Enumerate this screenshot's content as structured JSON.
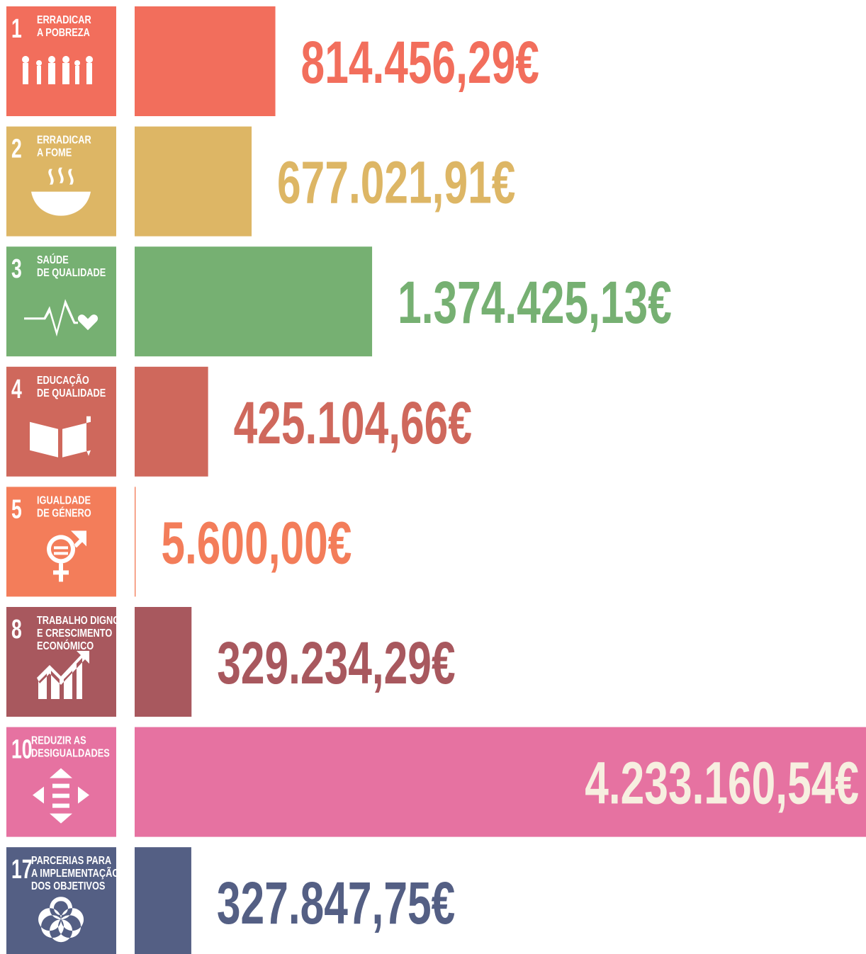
{
  "chart_data": {
    "type": "bar",
    "orientation": "horizontal",
    "goal_numbers": [
      1,
      2,
      3,
      4,
      5,
      8,
      10,
      17
    ],
    "categories": [
      [
        "ERRADICAR",
        "A POBREZA"
      ],
      [
        "ERRADICAR",
        "A FOME"
      ],
      [
        "SAÚDE",
        "DE QUALIDADE"
      ],
      [
        "EDUCAÇÃO",
        "DE QUALIDADE"
      ],
      [
        "IGUALDADE",
        "DE GÉNERO"
      ],
      [
        "TRABALHO DIGNO",
        "E CRESCIMENTO",
        "ECONÓMICO"
      ],
      [
        "REDUZIR AS",
        "DESIGUALDADES"
      ],
      [
        "PARCERIAS PARA",
        "A IMPLEMENTAÇÃO",
        "DOS OBJETIVOS"
      ]
    ],
    "values": [
      814456.29,
      677021.91,
      1374425.13,
      425104.66,
      5600.0,
      329234.29,
      4233160.54,
      327847.75
    ],
    "value_labels": [
      "814.456,29€",
      "677.021,91€",
      "1.374.425,13€",
      "425.104,66€",
      "5.600,00€",
      "329.234,29€",
      "4.233.160,54€",
      "327.847,75€"
    ],
    "colors": [
      "#f26e5c",
      "#ddb665",
      "#76b072",
      "#cf685c",
      "#f37d5a",
      "#a8585e",
      "#e672a1",
      "#545f84"
    ],
    "xlim": [
      0,
      4233160.54
    ]
  }
}
